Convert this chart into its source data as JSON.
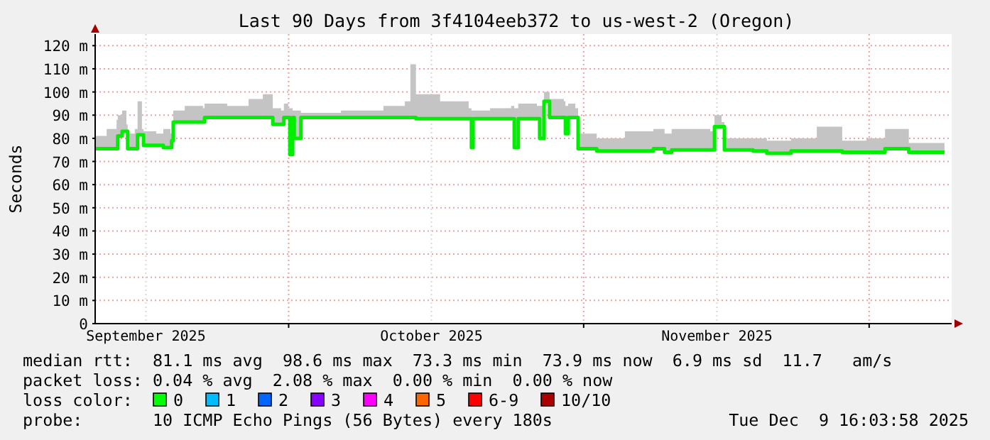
{
  "chart_data": {
    "type": "step",
    "title": "Last 90 Days from 3f4104eeb372 to us-west-2 (Oregon)",
    "ylabel": "Seconds",
    "xlim": [
      "2025-09-10T16:03",
      "2025-12-09T16:03"
    ],
    "xticks": [
      {
        "value": "2025-09-16",
        "label": "September 2025"
      },
      {
        "value": "2025-10-01",
        "label": null
      },
      {
        "value": "2025-10-16",
        "label": "October 2025"
      },
      {
        "value": "2025-11-01",
        "label": null
      },
      {
        "value": "2025-11-15",
        "label": "November 2025"
      },
      {
        "value": "2025-12-01",
        "label": null
      }
    ],
    "ylim": [
      0,
      125
    ],
    "yticks": [
      0,
      {
        "value": 10,
        "label": "10 m"
      },
      {
        "value": 20,
        "label": "20 m"
      },
      {
        "value": 30,
        "label": "30 m"
      },
      {
        "value": 40,
        "label": "40 m"
      },
      {
        "value": 50,
        "label": "50 m"
      },
      {
        "value": 60,
        "label": "60 m"
      },
      {
        "value": 70,
        "label": "70 m"
      },
      {
        "value": 80,
        "label": "80 m"
      },
      {
        "value": 90,
        "label": "90 m"
      },
      {
        "value": 100,
        "label": "100 m"
      },
      {
        "value": 110,
        "label": "110 m"
      },
      {
        "value": 120,
        "label": "120 m"
      }
    ],
    "grid": true,
    "x": [
      "2025-09-10T16:03",
      "2025-09-11T21:00",
      "2025-09-12T22:00",
      "2025-09-13T01:00",
      "2025-09-13T12:00",
      "2025-09-13T23:00",
      "2025-09-14T02:00",
      "2025-09-14T20:00",
      "2025-09-15T03:00",
      "2025-09-15T14:00",
      "2025-09-15T18:00",
      "2025-09-17T02:00",
      "2025-09-17T20:00",
      "2025-09-18T14:00",
      "2025-09-18T17:00",
      "2025-09-18T21:00",
      "2025-09-20T02:00",
      "2025-09-22T00:00",
      "2025-09-22T04:00",
      "2025-09-24T13:00",
      "2025-09-26T19:00",
      "2025-09-28T07:00",
      "2025-09-29T08:00",
      "2025-09-30T05:00",
      "2025-09-30T12:00",
      "2025-09-30T23:00",
      "2025-10-01T03:00",
      "2025-10-01T10:00",
      "2025-10-01T14:00",
      "2025-10-02T00:00",
      "2025-10-02T07:00",
      "2025-10-06T12:00",
      "2025-10-10T23:00",
      "2025-10-13T05:00",
      "2025-10-13T19:00",
      "2025-10-14T09:00",
      "2025-10-16T22:00",
      "2025-10-19T22:00",
      "2025-10-20T05:00",
      "2025-10-20T09:00",
      "2025-10-22T04:00",
      "2025-10-24T09:00",
      "2025-10-24T17:00",
      "2025-10-25T03:00",
      "2025-10-27T02:00",
      "2025-10-27T09:00",
      "2025-10-27T20:00",
      "2025-10-28T10:00",
      "2025-10-29T22:00",
      "2025-10-30T02:00",
      "2025-10-30T09:00",
      "2025-10-31T03:00",
      "2025-10-31T10:00",
      "2025-11-02T09:00",
      "2025-11-05T08:00",
      "2025-11-08T08:00",
      "2025-11-09T12:00",
      "2025-11-10T06:00",
      "2025-11-14T07:00",
      "2025-11-14T18:00",
      "2025-11-15T12:00",
      "2025-11-15T19:00",
      "2025-11-18T19:00",
      "2025-11-20T06:00",
      "2025-11-22T19:00",
      "2025-11-25T12:00",
      "2025-11-28T04:00",
      "2025-11-30T17:00",
      "2025-12-02T16:00",
      "2025-12-05T04:00",
      "2025-12-08T22:00"
    ],
    "series": [
      {
        "color": "#00ee00",
        "values": [
          75.5,
          75.5,
          75.5,
          81,
          83,
          83,
          75.5,
          75.5,
          81.5,
          81.5,
          77,
          77,
          76,
          76,
          79,
          87,
          87,
          87,
          89,
          89,
          89,
          89,
          86,
          86,
          89,
          89,
          73,
          89,
          80,
          80,
          89,
          89,
          89,
          89,
          89,
          88.5,
          88.5,
          88.5,
          76,
          88.5,
          88.5,
          88.5,
          76,
          88.5,
          88.5,
          80,
          96,
          89,
          89,
          82,
          89,
          89,
          75.5,
          74.5,
          74.5,
          75.5,
          74,
          75,
          75,
          85,
          85,
          75,
          74.5,
          73.5,
          74.5,
          74.5,
          74,
          74,
          75.5,
          74,
          74
        ],
        "lower": [
          75.5,
          75.5,
          75.5,
          81,
          83,
          83,
          75.5,
          75.5,
          81.5,
          81.5,
          77,
          77,
          76,
          76,
          79,
          87,
          87,
          87,
          89,
          89,
          89,
          89,
          86,
          86,
          89,
          89,
          73,
          89,
          80,
          80,
          89,
          89,
          89,
          89,
          89,
          88.5,
          88.5,
          88.5,
          76,
          88.5,
          88.5,
          88.5,
          76,
          88.5,
          88.5,
          80,
          96,
          89,
          89,
          82,
          89,
          89,
          75.5,
          74.5,
          74.5,
          75.5,
          74,
          75,
          75,
          85,
          85,
          75,
          74.5,
          73.5,
          74.5,
          74.5,
          74,
          74,
          75.5,
          74,
          74
        ],
        "upper": [
          81,
          84,
          88,
          90,
          92,
          86,
          82,
          84,
          96,
          84,
          83,
          82,
          84,
          82,
          86,
          92,
          94,
          93,
          95,
          94,
          97,
          99,
          93,
          92,
          95,
          93,
          93,
          92,
          92,
          92,
          91,
          92,
          94,
          96,
          112,
          99,
          96,
          93,
          92,
          92,
          93,
          94,
          93,
          95,
          94,
          94,
          100,
          97,
          96,
          94,
          95,
          93,
          82,
          80,
          83,
          84,
          82,
          84,
          83,
          90,
          87,
          80,
          80,
          79,
          80,
          85,
          79,
          80,
          84,
          78,
          77
        ]
      }
    ],
    "annotations": [
      "median rtt:  81.1 ms avg  98.6 ms max  73.3 ms min  73.9 ms now  6.9 ms sd  11.7   am/s",
      "packet loss: 0.04 % avg  2.08 % max  0.00 % min  0.00 % now",
      "loss color:",
      "0",
      "1",
      "2",
      "3",
      "4",
      "5",
      "6-9",
      "10/10",
      "probe:       10 ICMP Echo Pings (56 Bytes) every 180s",
      "Tue Dec  9 16:03:58 2025"
    ]
  }
}
